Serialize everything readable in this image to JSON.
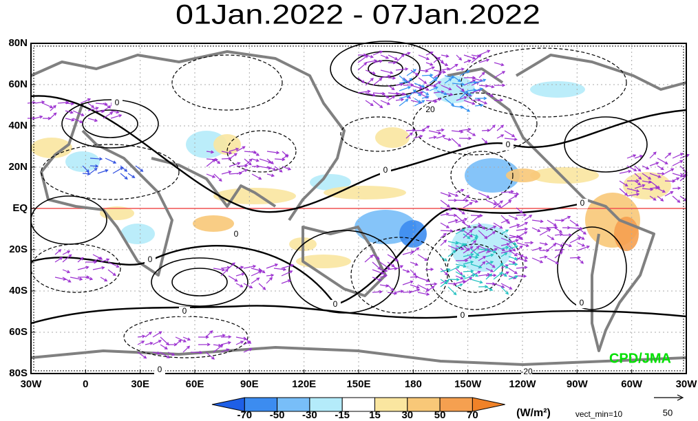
{
  "title": "01Jan.2022 - 07Jan.2022",
  "lon_labels": [
    "30W",
    "0",
    "30E",
    "60E",
    "90E",
    "120E",
    "150E",
    "180",
    "150W",
    "120W",
    "90W",
    "60W",
    "30W"
  ],
  "lat_labels": [
    "80N",
    "60N",
    "40N",
    "20N",
    "EQ",
    "20S",
    "40S",
    "60S",
    "80S"
  ],
  "contour_labels": [
    "0",
    "20",
    "0",
    "0",
    "0",
    "0",
    "0",
    "0",
    "0",
    "0",
    "0",
    "-20",
    "0"
  ],
  "colorbar": {
    "labels": [
      "-70",
      "-50",
      "-30",
      "-15",
      "15",
      "30",
      "50",
      "70"
    ],
    "units": "(W/m²)"
  },
  "vector": {
    "min_label": "vect_min=10",
    "reference": "50"
  },
  "credit": "CPD/JMA"
}
